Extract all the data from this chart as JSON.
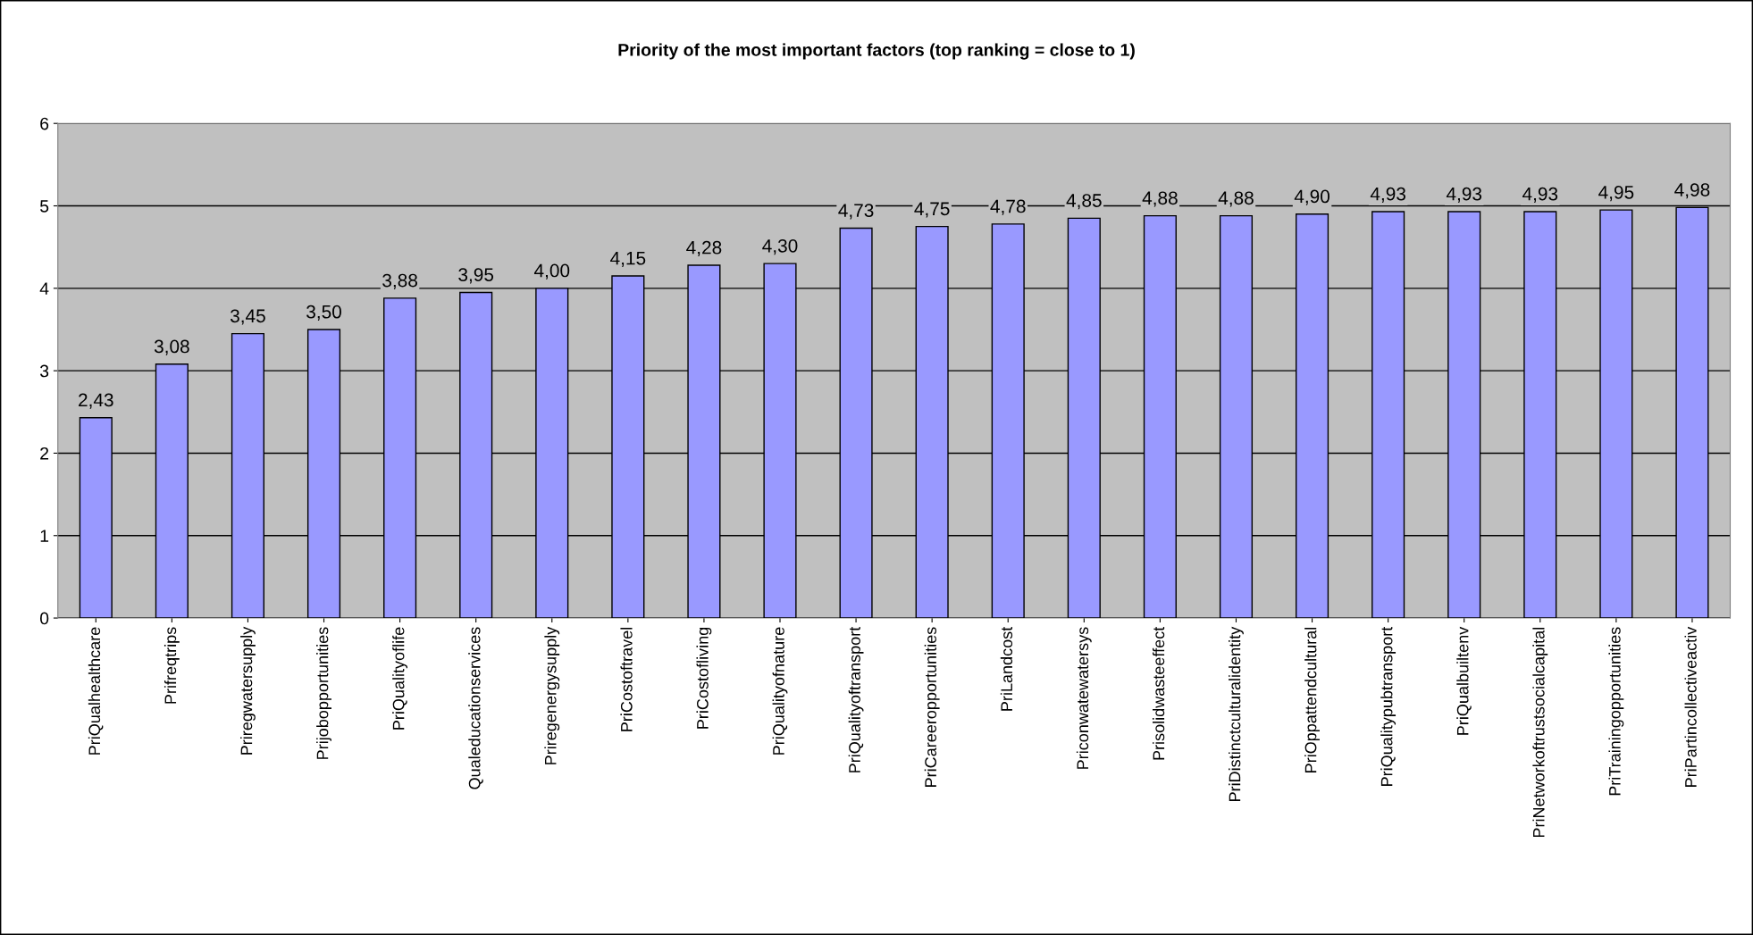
{
  "chart_data": {
    "type": "bar",
    "title": "Priority of the most important factors (top ranking = close to 1)",
    "categories": [
      "PriQualhealthcare",
      "Prifreqtrips",
      "Priregwatersupply",
      "Prijobopportunities",
      "PriQualityoflife",
      "Qualeducationservices",
      "Priregenergysupply",
      "PriCostoftravel",
      "PriCostofliving",
      "PriQualityofnature",
      "PriQualityoftransport",
      "PriCareeropportunities",
      "PriLandcost",
      "Priconwatewatersys",
      "Prisolidwasteeffect",
      "PriDistinctculturalidentity",
      "PriOppattendcultural",
      "PriQualitypubtransport",
      "PriQualbuiltenv",
      "PriNetworkoftrustsocialcapital",
      "PriTrainingopportunities",
      "PriPartincollectiveactiv"
    ],
    "values": [
      2.43,
      3.08,
      3.45,
      3.5,
      3.88,
      3.95,
      4.0,
      4.15,
      4.28,
      4.3,
      4.73,
      4.75,
      4.78,
      4.85,
      4.88,
      4.88,
      4.9,
      4.93,
      4.93,
      4.93,
      4.95,
      4.98
    ],
    "value_labels": [
      "2,43",
      "3,08",
      "3,45",
      "3,50",
      "3,88",
      "3,95",
      "4,00",
      "4,15",
      "4,28",
      "4,30",
      "4,73",
      "4,75",
      "4,78",
      "4,85",
      "4,88",
      "4,88",
      "4,90",
      "4,93",
      "4,93",
      "4,93",
      "4,95",
      "4,98"
    ],
    "color": "#9999ff",
    "ylim": [
      0,
      6
    ],
    "yticks": [
      0,
      1,
      2,
      3,
      4,
      5,
      6
    ],
    "grid": "y"
  }
}
